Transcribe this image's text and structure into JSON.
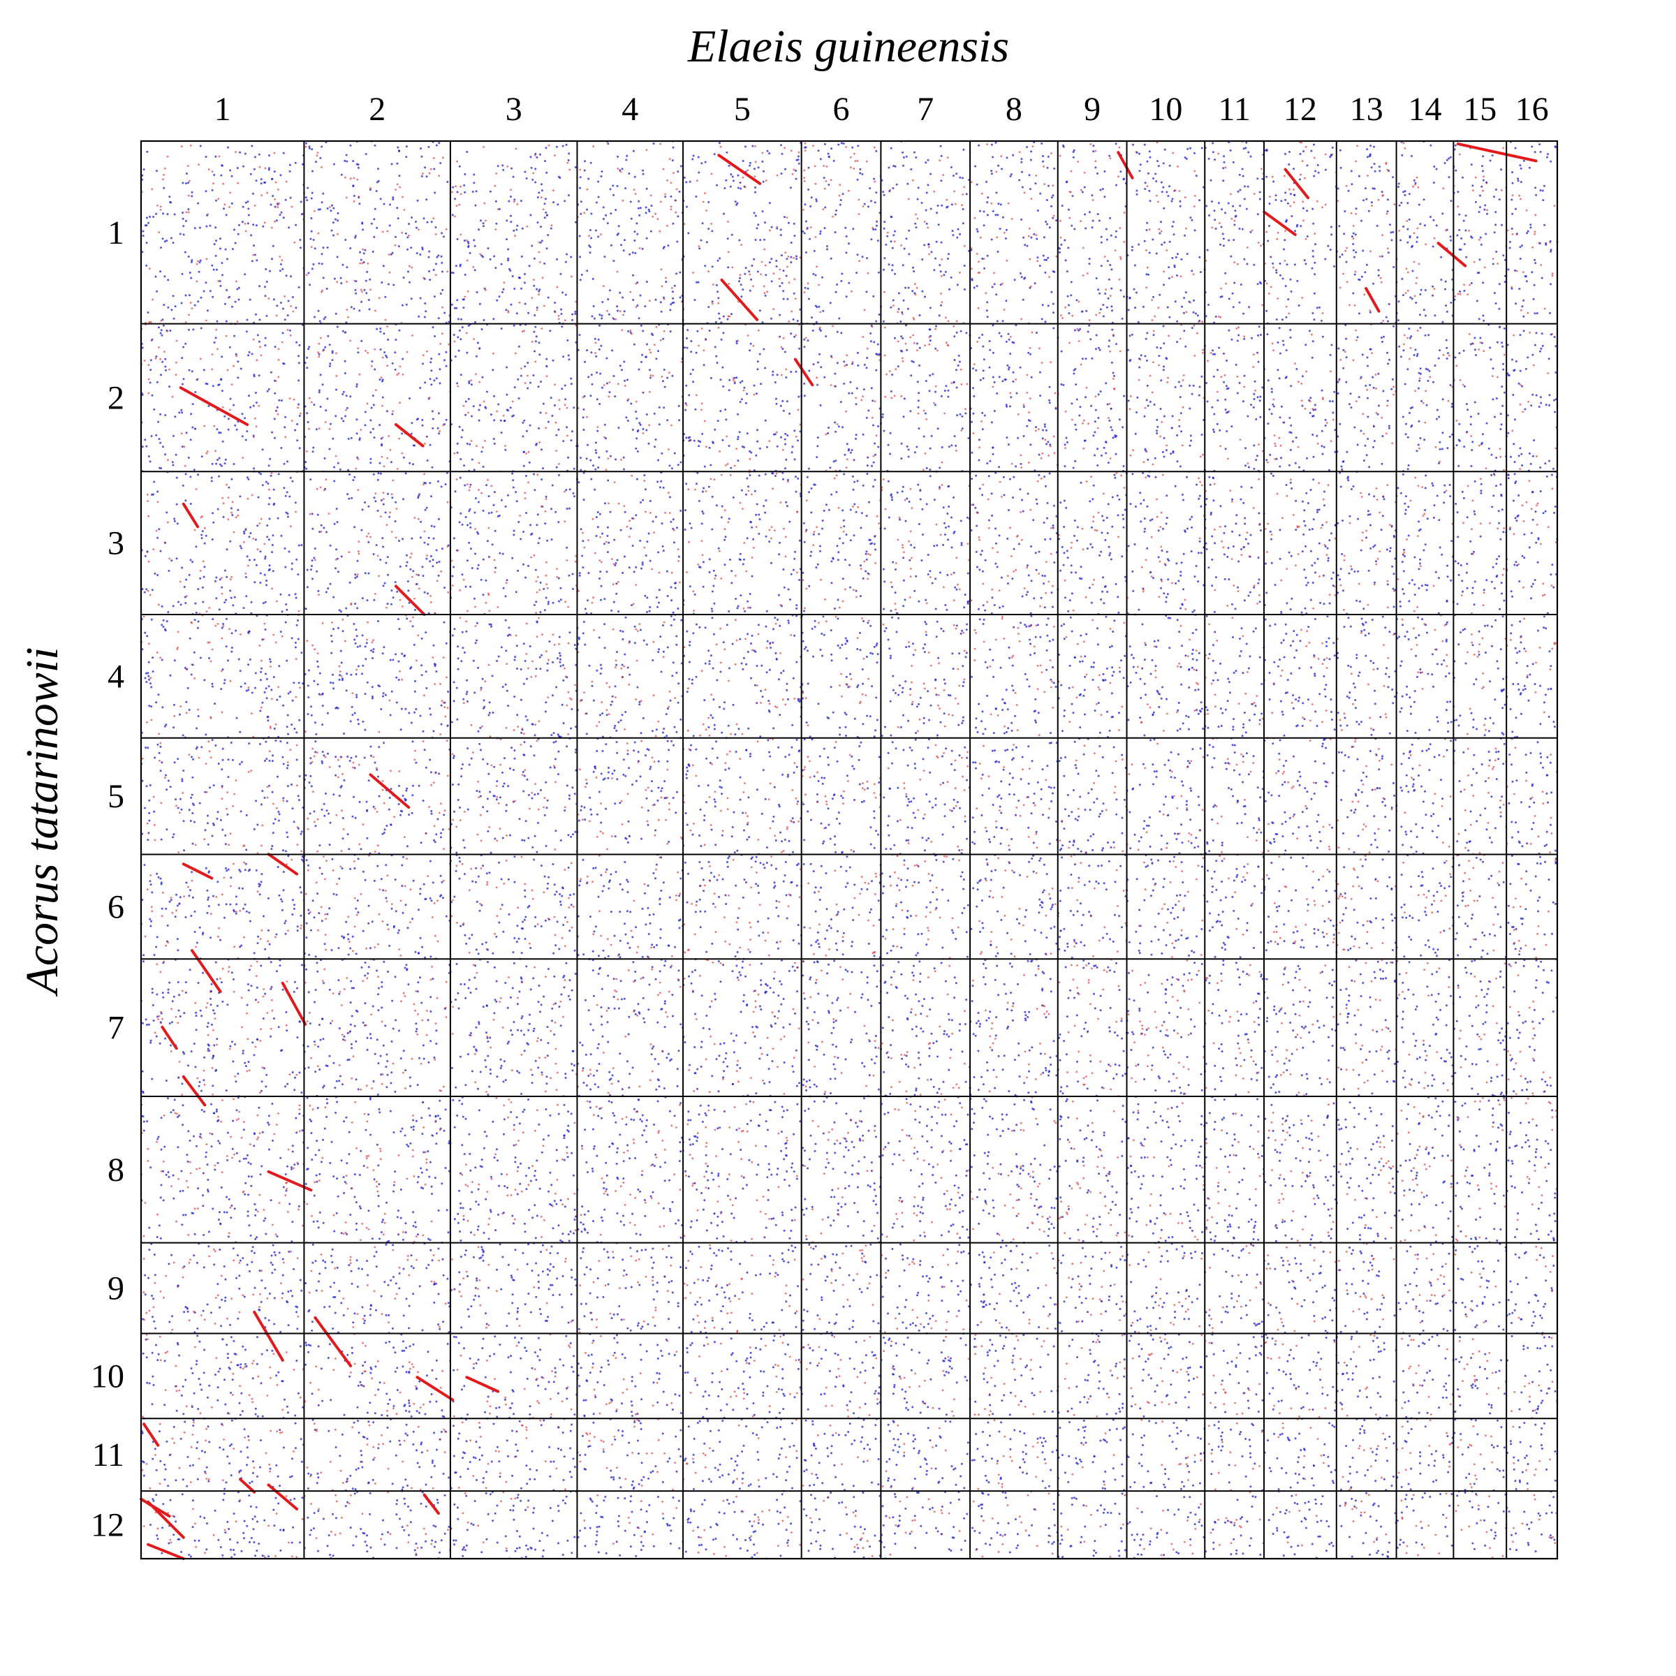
{
  "chart_data": {
    "type": "scatter",
    "subtype": "synteny-dotplot",
    "xlabel": "Elaeis guineensis",
    "ylabel": "Acorus tatarinowii",
    "x_chromosomes": [
      {
        "label": "1",
        "span": 234
      },
      {
        "label": "2",
        "span": 210
      },
      {
        "label": "3",
        "span": 182
      },
      {
        "label": "4",
        "span": 152
      },
      {
        "label": "5",
        "span": 170
      },
      {
        "label": "6",
        "span": 114
      },
      {
        "label": "7",
        "span": 128
      },
      {
        "label": "8",
        "span": 126
      },
      {
        "label": "9",
        "span": 99
      },
      {
        "label": "10",
        "span": 112
      },
      {
        "label": "11",
        "span": 85
      },
      {
        "label": "12",
        "span": 104
      },
      {
        "label": "13",
        "span": 86
      },
      {
        "label": "14",
        "span": 82
      },
      {
        "label": "15",
        "span": 76
      },
      {
        "label": "16",
        "span": 73
      }
    ],
    "y_chromosomes": [
      {
        "label": "1",
        "span": 262
      },
      {
        "label": "2",
        "span": 212
      },
      {
        "label": "3",
        "span": 205
      },
      {
        "label": "4",
        "span": 177
      },
      {
        "label": "5",
        "span": 167
      },
      {
        "label": "6",
        "span": 150
      },
      {
        "label": "7",
        "span": 197
      },
      {
        "label": "8",
        "span": 210
      },
      {
        "label": "9",
        "span": 130
      },
      {
        "label": "10",
        "span": 122
      },
      {
        "label": "11",
        "span": 104
      },
      {
        "label": "12",
        "span": 97
      }
    ],
    "series": [
      {
        "color": "#e31a1c",
        "kind": "best-hit dots and syntenic segments"
      },
      {
        "color": "#1f1fd1",
        "kind": "secondary-hit dots"
      }
    ],
    "segments": [
      {
        "x0": 0.93,
        "y0": 0.002,
        "x1": 0.985,
        "y1": 0.014,
        "dir": "+"
      },
      {
        "x0": 0.916,
        "y0": 0.072,
        "x1": 0.935,
        "y1": 0.088,
        "dir": "+"
      },
      {
        "x0": 0.865,
        "y0": 0.104,
        "x1": 0.874,
        "y1": 0.12,
        "dir": "+"
      },
      {
        "x0": 0.808,
        "y0": 0.02,
        "x1": 0.824,
        "y1": 0.04,
        "dir": "+"
      },
      {
        "x0": 0.793,
        "y0": 0.05,
        "x1": 0.815,
        "y1": 0.066,
        "dir": "-"
      },
      {
        "x0": 0.69,
        "y0": 0.008,
        "x1": 0.7,
        "y1": 0.026,
        "dir": "+"
      },
      {
        "x0": 0.41,
        "y0": 0.098,
        "x1": 0.435,
        "y1": 0.126,
        "dir": "-"
      },
      {
        "x0": 0.408,
        "y0": 0.01,
        "x1": 0.437,
        "y1": 0.03,
        "dir": "-"
      },
      {
        "x0": 0.028,
        "y0": 0.174,
        "x1": 0.075,
        "y1": 0.2,
        "dir": "+"
      },
      {
        "x0": 0.18,
        "y0": 0.2,
        "x1": 0.199,
        "y1": 0.215,
        "dir": "+"
      },
      {
        "x0": 0.462,
        "y0": 0.154,
        "x1": 0.474,
        "y1": 0.172,
        "dir": "-"
      },
      {
        "x0": 0.03,
        "y0": 0.256,
        "x1": 0.04,
        "y1": 0.272,
        "dir": "-"
      },
      {
        "x0": 0.18,
        "y0": 0.314,
        "x1": 0.2,
        "y1": 0.334,
        "dir": "-"
      },
      {
        "x0": 0.162,
        "y0": 0.447,
        "x1": 0.189,
        "y1": 0.47,
        "dir": "-"
      },
      {
        "x0": 0.03,
        "y0": 0.51,
        "x1": 0.05,
        "y1": 0.52,
        "dir": "+"
      },
      {
        "x0": 0.09,
        "y0": 0.503,
        "x1": 0.11,
        "y1": 0.517,
        "dir": "+"
      },
      {
        "x0": 0.036,
        "y0": 0.571,
        "x1": 0.056,
        "y1": 0.6,
        "dir": "-"
      },
      {
        "x0": 0.1,
        "y0": 0.594,
        "x1": 0.116,
        "y1": 0.623,
        "dir": "+"
      },
      {
        "x0": 0.015,
        "y0": 0.625,
        "x1": 0.025,
        "y1": 0.64,
        "dir": "-"
      },
      {
        "x0": 0.03,
        "y0": 0.66,
        "x1": 0.045,
        "y1": 0.68,
        "dir": "+"
      },
      {
        "x0": 0.09,
        "y0": 0.727,
        "x1": 0.12,
        "y1": 0.74,
        "dir": "-"
      },
      {
        "x0": 0.08,
        "y0": 0.826,
        "x1": 0.1,
        "y1": 0.86,
        "dir": "-"
      },
      {
        "x0": 0.123,
        "y0": 0.83,
        "x1": 0.148,
        "y1": 0.864,
        "dir": "-"
      },
      {
        "x0": 0.23,
        "y0": 0.872,
        "x1": 0.252,
        "y1": 0.882,
        "dir": "+"
      },
      {
        "x0": 0.195,
        "y0": 0.872,
        "x1": 0.22,
        "y1": 0.888,
        "dir": "-"
      },
      {
        "x0": 0.005,
        "y0": 0.96,
        "x1": 0.03,
        "y1": 0.985,
        "dir": "-"
      },
      {
        "x0": 0.002,
        "y0": 0.905,
        "x1": 0.012,
        "y1": 0.92,
        "dir": "+"
      },
      {
        "x0": 0.07,
        "y0": 0.944,
        "x1": 0.08,
        "y1": 0.953,
        "dir": "+"
      },
      {
        "x0": 0.09,
        "y0": 0.948,
        "x1": 0.11,
        "y1": 0.965,
        "dir": "-"
      },
      {
        "x0": 0.2,
        "y0": 0.955,
        "x1": 0.21,
        "y1": 0.968,
        "dir": "+"
      },
      {
        "x0": 0.0,
        "y0": 0.958,
        "x1": 0.02,
        "y1": 0.97,
        "dir": "-"
      },
      {
        "x0": 0.005,
        "y0": 0.99,
        "x1": 0.03,
        "y1": 1.0,
        "dir": "-"
      }
    ],
    "noise_density_per_block": 40
  }
}
